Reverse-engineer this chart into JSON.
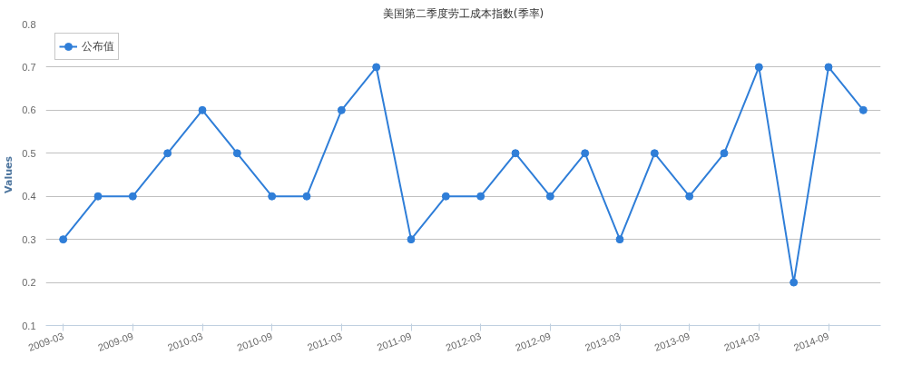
{
  "chart_data": {
    "type": "line",
    "title": "美国第二季度劳工成本指数(季率)",
    "ylabel": "Values",
    "categories": [
      "2009-03",
      null,
      "2009-09",
      null,
      "2010-03",
      null,
      "2010-09",
      null,
      "2011-03",
      null,
      "2011-09",
      null,
      "2012-03",
      null,
      "2012-09",
      null,
      "2013-03",
      null,
      "2013-09",
      null,
      "2014-03",
      null,
      "2014-09",
      null
    ],
    "series": [
      {
        "name": "公布值",
        "color": "#2f7ed8",
        "values": [
          0.3,
          0.4,
          0.4,
          0.5,
          0.6,
          0.5,
          0.4,
          0.4,
          0.6,
          0.7,
          0.3,
          0.4,
          0.4,
          0.5,
          0.4,
          0.5,
          0.3,
          0.5,
          0.4,
          0.5,
          0.7,
          0.2,
          0.7,
          0.6
        ]
      }
    ],
    "ylim": [
      0.1,
      0.8
    ],
    "yticks": [
      0.1,
      0.2,
      0.3,
      0.4,
      0.5,
      0.6,
      0.7,
      0.8
    ],
    "grid": "y",
    "legend": "top left",
    "marker": "circle",
    "line_style": "solid"
  }
}
